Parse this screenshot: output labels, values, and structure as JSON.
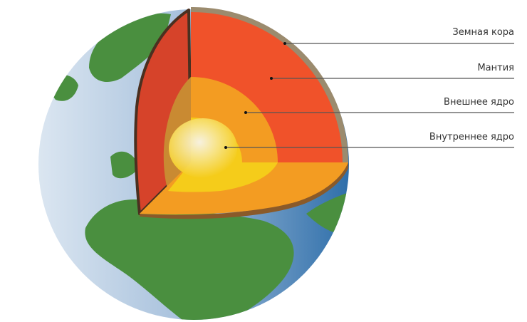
{
  "labels": {
    "crust": "Земная кора",
    "mantle": "Мантия",
    "outer_core": "Внешнее ядро",
    "inner_core": "Внутреннее ядро"
  },
  "colors": {
    "crust": "#9b8b6e",
    "mantle": "#f0522a",
    "mantle_side": "#d6432a",
    "outer_core": "#f39c22",
    "inner_core": "#f7d11e",
    "land": "#4a8f3f",
    "ocean": "#3a77b0"
  }
}
